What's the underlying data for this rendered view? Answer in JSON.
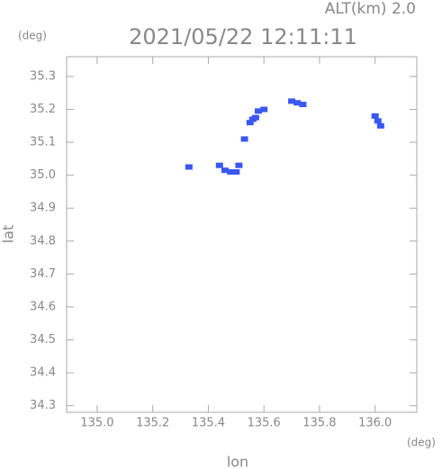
{
  "chart_data": {
    "type": "scatter",
    "title": "2021/05/22 12:11:11",
    "annotation": "ALT(km) 2.0",
    "y_unit": "(deg)",
    "x_unit": "(deg)",
    "x_label": "lon",
    "y_label": "lat",
    "color": "#3a57f0",
    "x": [
      135.33,
      135.44,
      135.46,
      135.48,
      135.5,
      135.51,
      135.53,
      135.55,
      135.56,
      135.57,
      135.58,
      135.6,
      135.7,
      135.72,
      135.74,
      136.0,
      136.01,
      136.02
    ],
    "y": [
      35.025,
      35.03,
      35.015,
      35.01,
      35.01,
      35.03,
      35.11,
      35.16,
      35.17,
      35.175,
      35.195,
      35.2,
      35.225,
      35.22,
      35.215,
      35.18,
      35.165,
      35.15
    ],
    "xlim": [
      134.89,
      136.15
    ],
    "ylim": [
      34.28,
      35.36
    ],
    "xticks": [
      {
        "value": 135,
        "label": "135.0"
      },
      135.2,
      135.4,
      135.6,
      135.8,
      {
        "value": 136,
        "label": "136.0"
      }
    ],
    "yticks": [
      34.3,
      34.4,
      34.5,
      34.6,
      34.7,
      34.8,
      34.9,
      {
        "value": 35,
        "label": "35.0"
      },
      35.1,
      35.2,
      35.3
    ]
  }
}
